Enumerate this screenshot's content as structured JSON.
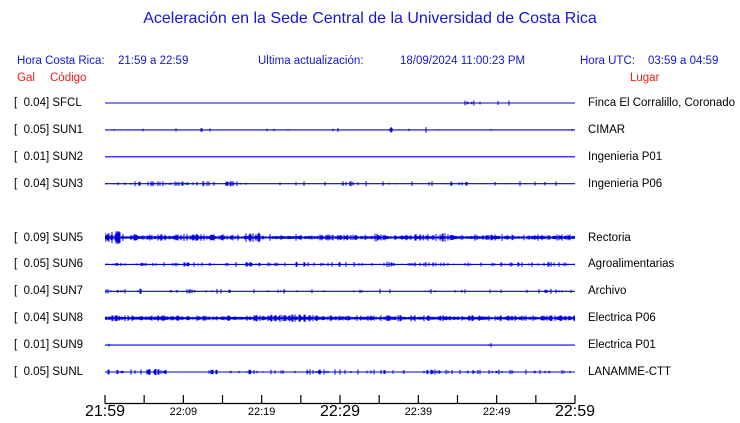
{
  "title": "Aceleración en la Sede Central de la Universidad de Costa Rica",
  "header": {
    "hora_cr_label": "Hora Costa Rica:",
    "hora_cr_value": "21:59 a 22:59",
    "update_label": "Ultima actualización:",
    "update_value": "18/09/2024 11:00:23 PM",
    "hora_utc_label": "Hora UTC:",
    "hora_utc_value": "03:59 a 04:59"
  },
  "columns": {
    "gal": "Gal",
    "codigo": "Código",
    "lugar": "Lugar"
  },
  "colors": {
    "header_blue": "#1414dc",
    "label_red": "#ee1c1c",
    "trace_blue": "#0000e0",
    "text_black": "#000000",
    "background": "#ffffff"
  },
  "chart_data": {
    "type": "line",
    "title": "Aceleración en la Sede Central de la Universidad de Costa Rica",
    "x_range": [
      "21:59",
      "22:59"
    ],
    "x_unit": "hora local",
    "y_unit": "Gal",
    "grid": false,
    "legend_position": "none",
    "stations": [
      {
        "code": "SFCL",
        "peak_gal": "0.04",
        "location": "Finca El Corralillo, Coronado",
        "activity": "quiet, small burst near 22:47-22:51",
        "render": {
          "row": 0,
          "seed": 11,
          "band": 0,
          "density": 0.0,
          "amp": 0,
          "clusters": [
            {
              "from": 0.76,
              "to": 0.87,
              "density": 0.1,
              "amp": 2.2
            }
          ]
        }
      },
      {
        "code": "SUN1",
        "peak_gal": "0.05",
        "location": "CIMAR",
        "activity": "sparse light spikes",
        "render": {
          "row": 1,
          "seed": 22,
          "band": 0,
          "density": 0.025,
          "amp": 1.6,
          "clusters": [
            {
              "from": 0.16,
              "to": 0.23,
              "density": 0.13,
              "amp": 2.0
            },
            {
              "from": 0.6,
              "to": 0.67,
              "density": 0.16,
              "amp": 2.6
            },
            {
              "from": 0.68,
              "to": 0.72,
              "density": 0.14,
              "amp": 2.2
            }
          ]
        }
      },
      {
        "code": "SUN2",
        "peak_gal": "0.01",
        "location": "Ingenieria P01",
        "activity": "flat",
        "render": {
          "row": 2,
          "seed": 33,
          "band": 0,
          "density": 0.0,
          "amp": 0,
          "clusters": []
        }
      },
      {
        "code": "SUN3",
        "peak_gal": "0.04",
        "location": "Ingenieria P06",
        "activity": "light spikes, denser first half",
        "render": {
          "row": 3,
          "seed": 44,
          "band": 0,
          "density": 0.1,
          "amp": 1.8,
          "clusters": [
            {
              "from": 0.0,
              "to": 0.3,
              "density": 0.3,
              "amp": 2.2
            },
            {
              "from": 0.48,
              "to": 0.56,
              "density": 0.2,
              "amp": 2.0
            },
            {
              "from": 0.74,
              "to": 0.8,
              "density": 0.22,
              "amp": 2.0
            }
          ]
        }
      },
      {
        "code": "SUN5",
        "peak_gal": "0.09",
        "location": "Rectoria",
        "activity": "continuous noise, burst at start",
        "render": {
          "row": 5,
          "seed": 55,
          "band": 1.2,
          "density": 0.5,
          "amp": 2.8,
          "clusters": [
            {
              "from": 0.0,
              "to": 0.035,
              "density": 0.95,
              "amp": 6.0
            },
            {
              "from": 0.3,
              "to": 0.33,
              "density": 0.7,
              "amp": 4.5
            },
            {
              "from": 0.55,
              "to": 0.58,
              "density": 0.6,
              "amp": 4.0
            },
            {
              "from": 0.7,
              "to": 0.73,
              "density": 0.6,
              "amp": 4.0
            }
          ]
        }
      },
      {
        "code": "SUN6",
        "peak_gal": "0.05",
        "location": "Agroalimentarias",
        "activity": "moderate spikes throughout",
        "render": {
          "row": 6,
          "seed": 66,
          "band": 0.3,
          "density": 0.28,
          "amp": 1.9,
          "clusters": [
            {
              "from": 0.55,
              "to": 0.62,
              "density": 0.4,
              "amp": 2.4
            }
          ]
        }
      },
      {
        "code": "SUN7",
        "peak_gal": "0.04",
        "location": "Archivo",
        "activity": "sparse moderate spikes",
        "render": {
          "row": 7,
          "seed": 77,
          "band": 0,
          "density": 0.14,
          "amp": 2.0,
          "clusters": []
        }
      },
      {
        "code": "SUN8",
        "peak_gal": "0.04",
        "location": "Electrica P06",
        "activity": "continuous dense noise",
        "render": {
          "row": 8,
          "seed": 88,
          "band": 1.3,
          "density": 0.55,
          "amp": 2.4,
          "clusters": [
            {
              "from": 0.35,
              "to": 0.45,
              "density": 0.75,
              "amp": 3.2
            },
            {
              "from": 0.62,
              "to": 0.68,
              "density": 0.7,
              "amp": 3.0
            }
          ]
        }
      },
      {
        "code": "SUN9",
        "peak_gal": "0.01",
        "location": "Electrica P01",
        "activity": "flat, one tiny blip near 22:48",
        "render": {
          "row": 9,
          "seed": 99,
          "band": 0,
          "density": 0.002,
          "amp": 1.0,
          "clusters": [
            {
              "from": 0.815,
              "to": 0.825,
              "density": 0.5,
              "amp": 1.6
            }
          ]
        }
      },
      {
        "code": "SUNL",
        "peak_gal": "0.05",
        "location": "LANAMME-CTT",
        "activity": "moderate spikes throughout",
        "render": {
          "row": 10,
          "seed": 110,
          "band": 0.3,
          "density": 0.22,
          "amp": 2.0,
          "clusters": [
            {
              "from": 0.03,
              "to": 0.12,
              "density": 0.4,
              "amp": 2.6
            },
            {
              "from": 0.42,
              "to": 0.5,
              "density": 0.35,
              "amp": 2.3
            }
          ]
        }
      }
    ]
  },
  "axis": {
    "ticks": [
      {
        "t": 0.0,
        "label": "21:59",
        "major": true
      },
      {
        "t": 0.0833
      },
      {
        "t": 0.1667,
        "label": "22:09",
        "major": false
      },
      {
        "t": 0.25
      },
      {
        "t": 0.3333,
        "label": "22:19",
        "major": false
      },
      {
        "t": 0.4167
      },
      {
        "t": 0.5,
        "label": "22:29",
        "major": true
      },
      {
        "t": 0.5833
      },
      {
        "t": 0.6667,
        "label": "22:39",
        "major": false
      },
      {
        "t": 0.75
      },
      {
        "t": 0.8333,
        "label": "22:49",
        "major": false
      },
      {
        "t": 0.9167
      },
      {
        "t": 1.0,
        "label": "22:59",
        "major": true
      }
    ]
  }
}
